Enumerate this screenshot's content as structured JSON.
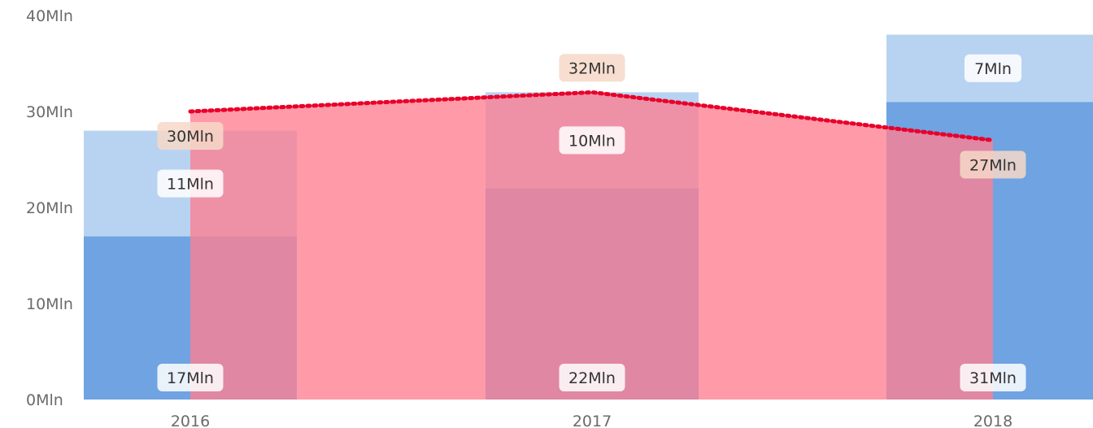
{
  "chart_data": {
    "type": "bar",
    "categories": [
      "2016",
      "2017",
      "2018"
    ],
    "ylim": [
      0,
      40
    ],
    "y_ticks": [
      "0Mln",
      "10Mln",
      "20Mln",
      "30Mln",
      "40Mln"
    ],
    "series": [
      {
        "name": "",
        "kind": "stacked-bar",
        "values": [
          17,
          22,
          31
        ],
        "labels": [
          "17Mln",
          "22Mln",
          "31Mln"
        ]
      },
      {
        "name": "",
        "kind": "stacked-bar",
        "values": [
          11,
          10,
          7
        ],
        "labels": [
          "11Mln",
          "10Mln",
          "7Mln"
        ]
      },
      {
        "name": "",
        "kind": "area-line",
        "values": [
          30,
          32,
          27
        ],
        "labels": [
          "30Mln",
          "32Mln",
          "27Mln"
        ]
      }
    ],
    "colors": {
      "bar_bottom": "#6fa3e1",
      "bar_top": "#b8d3f1",
      "area_fill": "#ff7f91",
      "line": "#e8002a",
      "line_label_bg": "#f6d8c8"
    },
    "grid": false,
    "legend": "none"
  }
}
